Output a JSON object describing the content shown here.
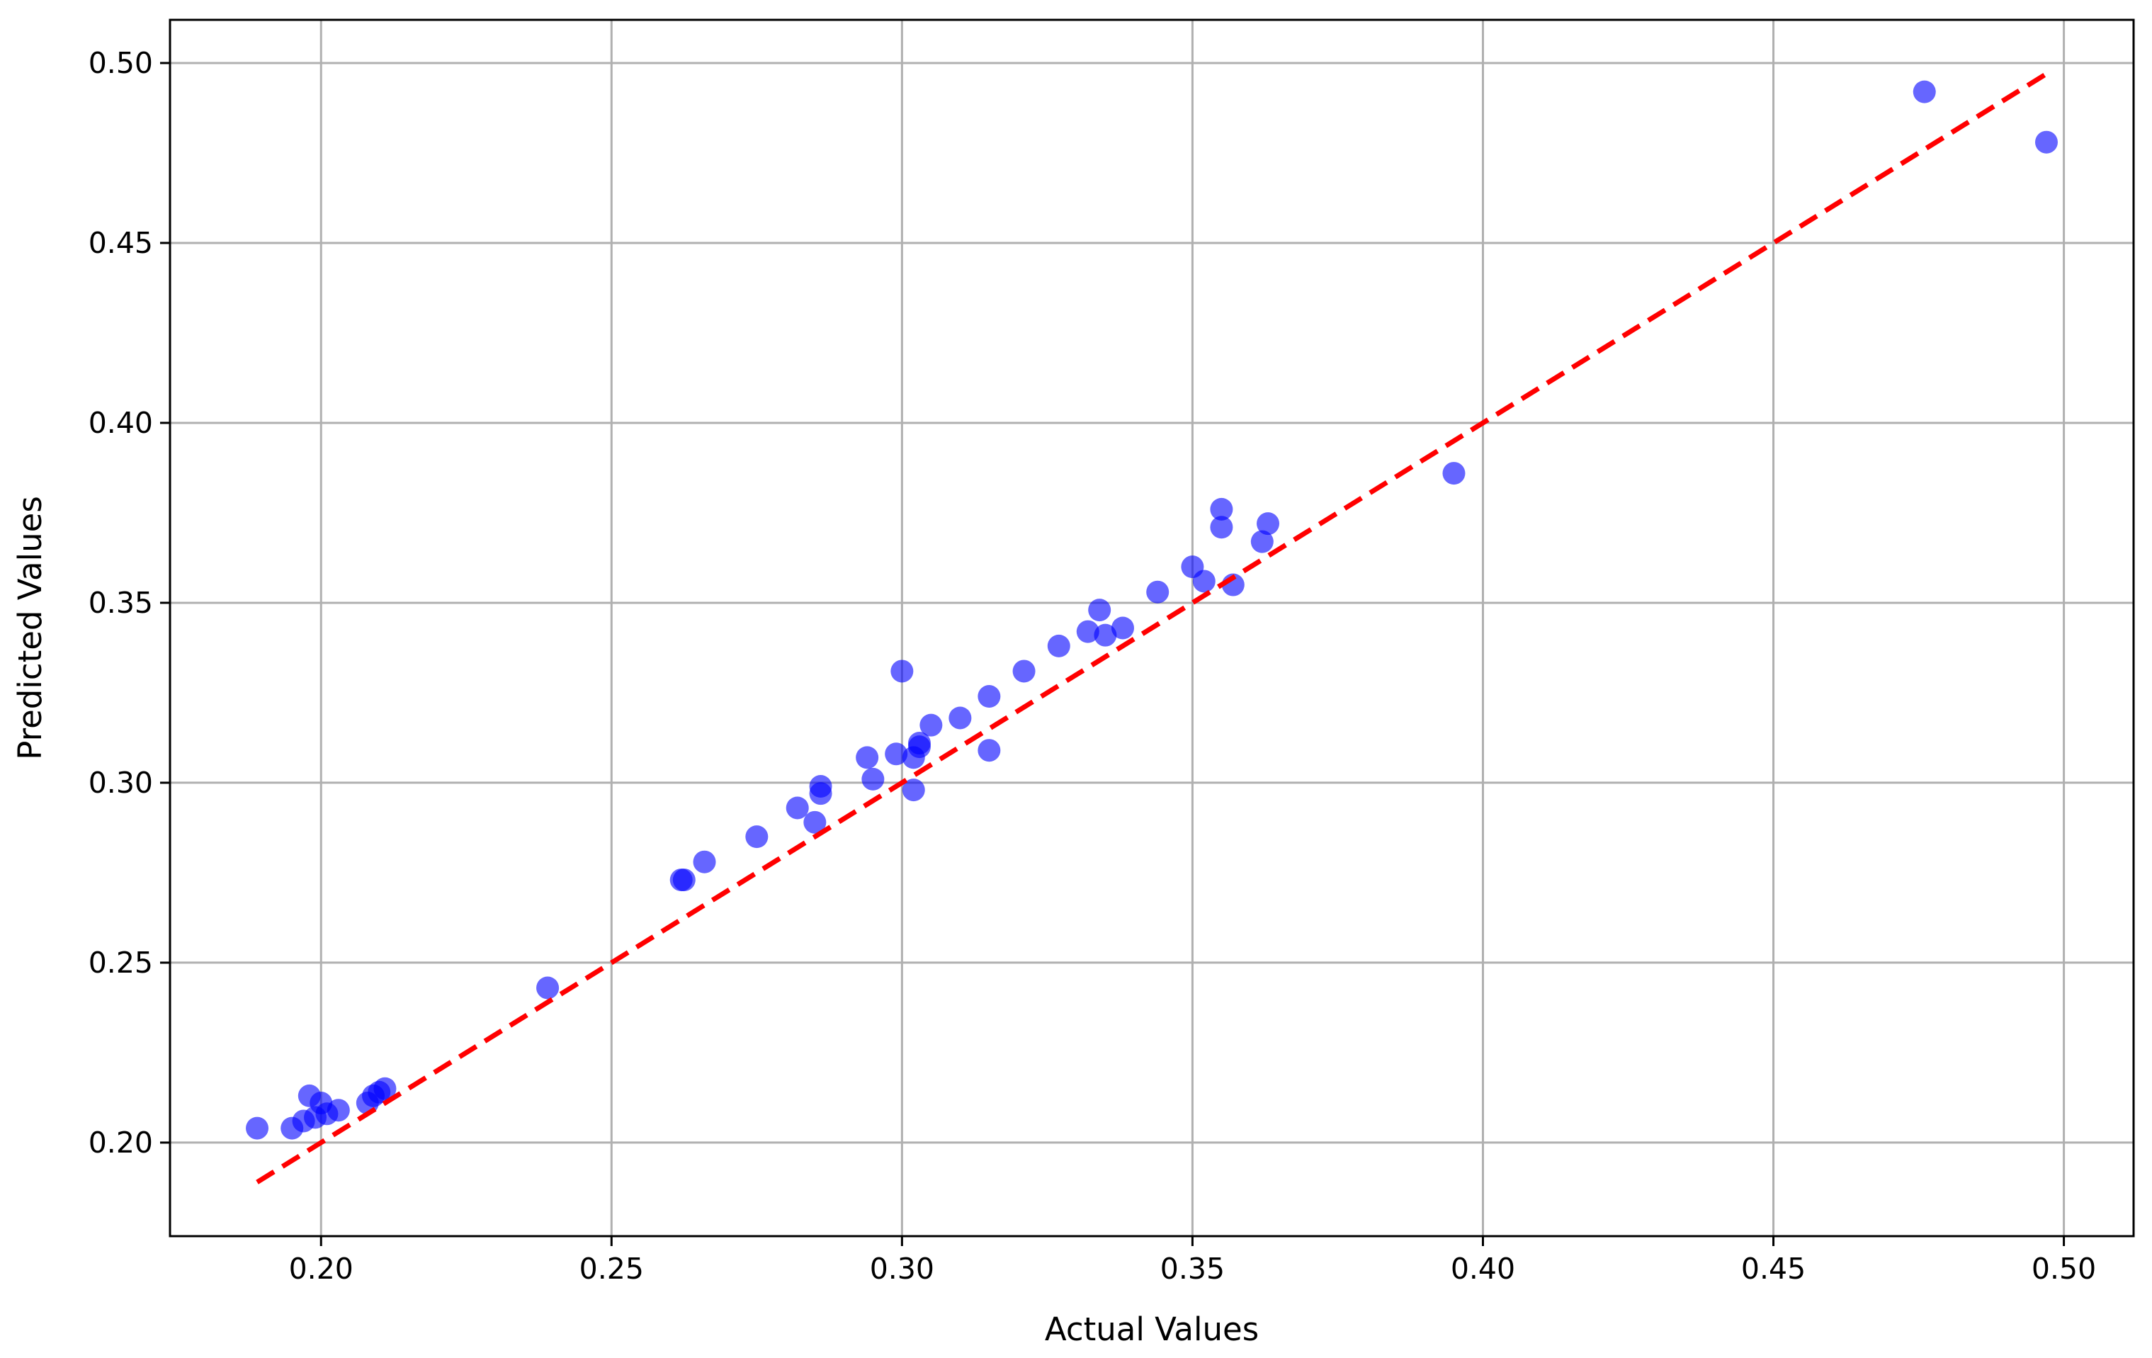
{
  "chart_data": {
    "type": "scatter",
    "title": "",
    "xlabel": "Actual Values",
    "ylabel": "Predicted Values",
    "xlim": [
      0.174,
      0.512
    ],
    "ylim": [
      0.174,
      0.512
    ],
    "xticks": [
      "0.20",
      "0.25",
      "0.30",
      "0.35",
      "0.40",
      "0.45",
      "0.50"
    ],
    "yticks": [
      "0.20",
      "0.25",
      "0.30",
      "0.35",
      "0.40",
      "0.45",
      "0.50"
    ],
    "grid": true,
    "colors": {
      "points": "#0000ff",
      "reference_line": "#ff0000",
      "grid": "#b0b0b0"
    },
    "reference_line": {
      "style": "dashed",
      "from": [
        0.189,
        0.189
      ],
      "to": [
        0.497,
        0.497
      ]
    },
    "series": [
      {
        "x": [
          0.189,
          0.195,
          0.197,
          0.198,
          0.199,
          0.2,
          0.201,
          0.203,
          0.208,
          0.209,
          0.21,
          0.211,
          0.239,
          0.262,
          0.2625,
          0.266,
          0.275,
          0.282,
          0.285,
          0.286,
          0.286,
          0.294,
          0.295,
          0.299,
          0.3,
          0.302,
          0.302,
          0.303,
          0.303,
          0.305,
          0.31,
          0.315,
          0.315,
          0.321,
          0.327,
          0.332,
          0.334,
          0.335,
          0.338,
          0.344,
          0.35,
          0.352,
          0.355,
          0.355,
          0.357,
          0.362,
          0.363,
          0.395,
          0.476,
          0.497
        ],
        "y": [
          0.204,
          0.204,
          0.206,
          0.213,
          0.207,
          0.211,
          0.208,
          0.209,
          0.211,
          0.213,
          0.214,
          0.215,
          0.243,
          0.273,
          0.273,
          0.278,
          0.285,
          0.293,
          0.289,
          0.297,
          0.299,
          0.307,
          0.301,
          0.308,
          0.331,
          0.298,
          0.307,
          0.31,
          0.311,
          0.316,
          0.318,
          0.309,
          0.324,
          0.331,
          0.338,
          0.342,
          0.348,
          0.341,
          0.343,
          0.353,
          0.36,
          0.356,
          0.371,
          0.376,
          0.355,
          0.367,
          0.372,
          0.386,
          0.492,
          0.478
        ]
      }
    ]
  }
}
